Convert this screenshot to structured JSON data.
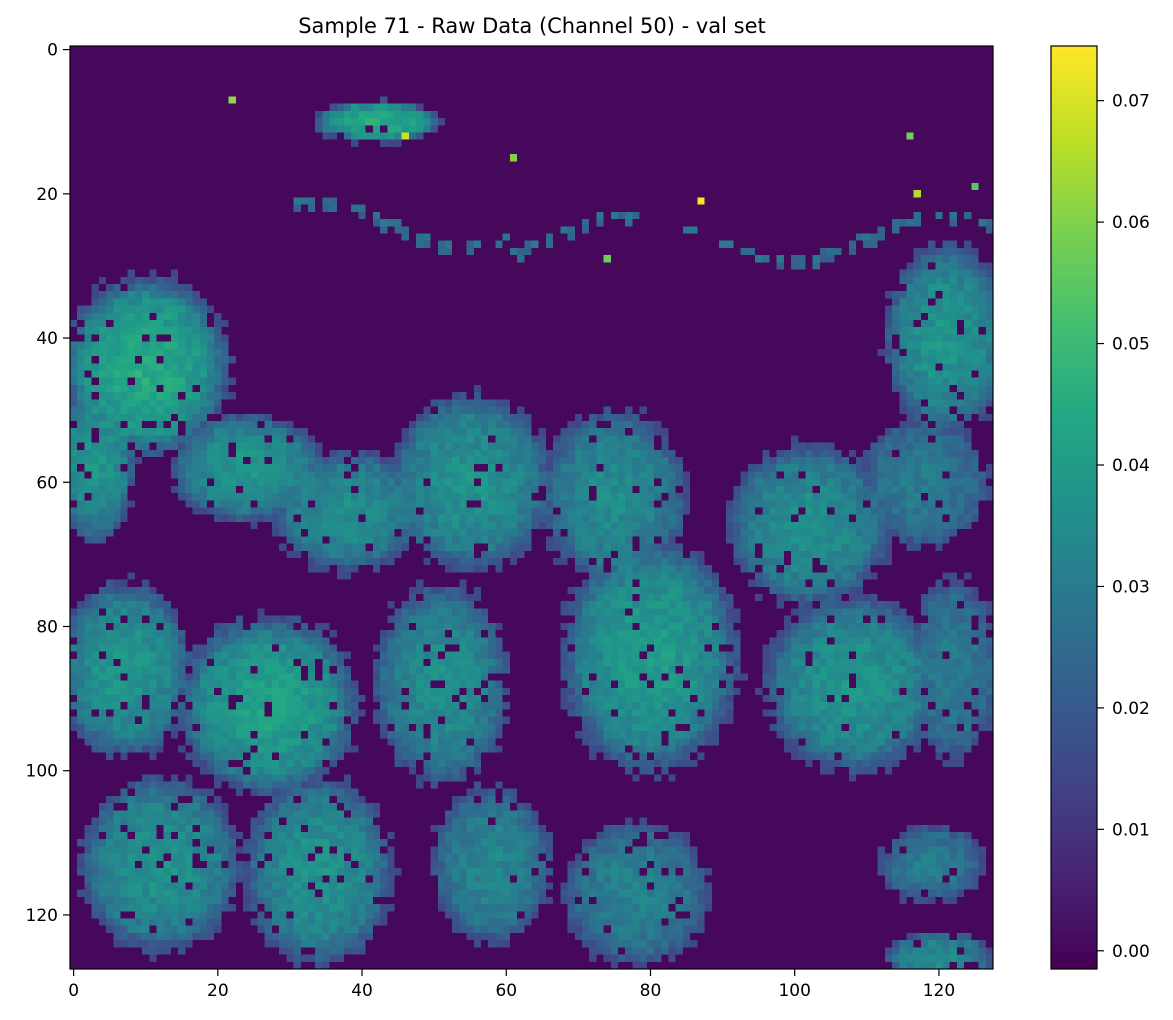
{
  "chart_data": {
    "type": "heatmap",
    "title": "Sample 71 - Raw Data (Channel 50) - val set",
    "xlabel": "",
    "ylabel": "",
    "grid": false,
    "colormap": "viridis",
    "image_size": [
      128,
      128
    ],
    "x_ticks": [
      0,
      20,
      40,
      60,
      80,
      100,
      120
    ],
    "y_ticks": [
      0,
      20,
      40,
      60,
      80,
      100,
      120
    ],
    "x_tick_labels": [
      "0",
      "20",
      "40",
      "60",
      "80",
      "100",
      "120"
    ],
    "y_tick_labels": [
      "0",
      "20",
      "40",
      "60",
      "80",
      "100",
      "120"
    ],
    "colorbar": {
      "range": [
        -0.0015,
        0.0745
      ],
      "ticks": [
        0.0,
        0.01,
        0.02,
        0.03,
        0.04,
        0.05,
        0.06,
        0.07
      ],
      "tick_labels": [
        "0.00",
        "0.01",
        "0.02",
        "0.03",
        "0.04",
        "0.05",
        "0.06",
        "0.07"
      ]
    },
    "background_value": 0.0,
    "regions": [
      {
        "cx": 10,
        "cy": 44,
        "rx": 12,
        "ry": 13,
        "peak": 0.045
      },
      {
        "cx": 3,
        "cy": 57,
        "rx": 6,
        "ry": 12,
        "peak": 0.038
      },
      {
        "cx": 24,
        "cy": 58,
        "rx": 11,
        "ry": 8,
        "peak": 0.038
      },
      {
        "cx": 38,
        "cy": 64,
        "rx": 11,
        "ry": 9,
        "peak": 0.036
      },
      {
        "cx": 55,
        "cy": 60,
        "rx": 12,
        "ry": 13,
        "peak": 0.037
      },
      {
        "cx": 75,
        "cy": 62,
        "rx": 11,
        "ry": 13,
        "peak": 0.035
      },
      {
        "cx": 102,
        "cy": 66,
        "rx": 12,
        "ry": 12,
        "peak": 0.036
      },
      {
        "cx": 121,
        "cy": 40,
        "rx": 9,
        "ry": 14,
        "peak": 0.038
      },
      {
        "cx": 118,
        "cy": 60,
        "rx": 10,
        "ry": 10,
        "peak": 0.03
      },
      {
        "cx": 7,
        "cy": 86,
        "rx": 10,
        "ry": 13,
        "peak": 0.038
      },
      {
        "cx": 27,
        "cy": 91,
        "rx": 13,
        "ry": 13,
        "peak": 0.042
      },
      {
        "cx": 51,
        "cy": 88,
        "rx": 10,
        "ry": 15,
        "peak": 0.036
      },
      {
        "cx": 80,
        "cy": 84,
        "rx": 13,
        "ry": 17,
        "peak": 0.04
      },
      {
        "cx": 108,
        "cy": 88,
        "rx": 13,
        "ry": 13,
        "peak": 0.038
      },
      {
        "cx": 122,
        "cy": 86,
        "rx": 7,
        "ry": 14,
        "peak": 0.03
      },
      {
        "cx": 12,
        "cy": 113,
        "rx": 12,
        "ry": 13,
        "peak": 0.037
      },
      {
        "cx": 34,
        "cy": 114,
        "rx": 11,
        "ry": 14,
        "peak": 0.037
      },
      {
        "cx": 58,
        "cy": 113,
        "rx": 9,
        "ry": 12,
        "peak": 0.033
      },
      {
        "cx": 78,
        "cy": 117,
        "rx": 11,
        "ry": 11,
        "peak": 0.032
      },
      {
        "cx": 119,
        "cy": 113,
        "rx": 8,
        "ry": 6,
        "peak": 0.03
      },
      {
        "cx": 120,
        "cy": 126,
        "rx": 8,
        "ry": 4,
        "peak": 0.035
      },
      {
        "cx": 42,
        "cy": 10,
        "rx": 9,
        "ry": 3,
        "peak": 0.045
      }
    ],
    "hotspots": [
      {
        "x": 87,
        "y": 21,
        "value": 0.074
      },
      {
        "x": 46,
        "y": 12,
        "value": 0.068
      },
      {
        "x": 117,
        "y": 20,
        "value": 0.066
      },
      {
        "x": 61,
        "y": 15,
        "value": 0.06
      },
      {
        "x": 116,
        "y": 12,
        "value": 0.058
      },
      {
        "x": 22,
        "y": 7,
        "value": 0.062
      },
      {
        "x": 74,
        "y": 29,
        "value": 0.058
      },
      {
        "x": 125,
        "y": 19,
        "value": 0.055
      }
    ]
  }
}
